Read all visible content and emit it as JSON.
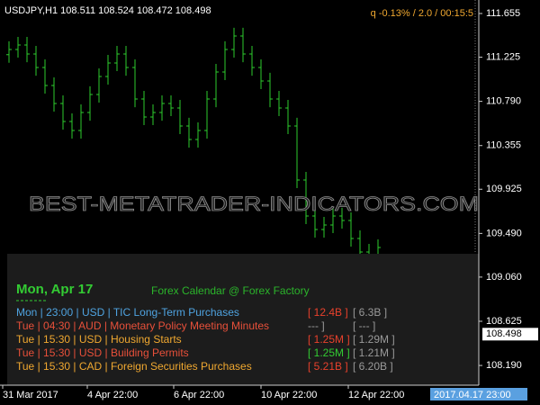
{
  "chart_data": {
    "type": "ohlc",
    "header": "USDJPY,H1  108.511 108.524 108.472 108.498",
    "info": "q -0.13% / 2.0 / 00:15:5",
    "color": "#2ecc2e",
    "open": [
      111.25,
      111.301,
      111.345,
      111.256,
      111.123,
      110.946,
      110.769,
      110.592,
      110.503,
      110.68,
      110.858,
      111.035,
      111.168,
      111.256,
      111.123,
      110.813,
      110.636,
      110.68,
      110.769,
      110.725,
      110.548,
      110.415,
      110.503,
      110.813,
      111.079,
      111.301,
      111.434,
      111.256,
      111.123,
      110.991,
      110.813,
      110.725,
      110.548,
      110.016,
      109.662,
      109.529,
      109.573,
      109.662,
      109.617,
      109.44,
      109.307,
      109.263
    ],
    "high": [
      111.381,
      111.425,
      111.425,
      111.336,
      111.203,
      111.026,
      110.849,
      110.672,
      110.76,
      110.938,
      111.115,
      111.248,
      111.336,
      111.336,
      111.203,
      110.893,
      110.76,
      110.849,
      110.849,
      110.805,
      110.628,
      110.583,
      110.893,
      111.159,
      111.381,
      111.514,
      111.514,
      111.336,
      111.203,
      111.071,
      110.893,
      110.805,
      110.628,
      110.096,
      109.742,
      109.653,
      109.742,
      109.742,
      109.697,
      109.52,
      109.387,
      109.431
    ],
    "low": [
      111.17,
      111.221,
      111.176,
      111.043,
      110.866,
      110.689,
      110.512,
      110.423,
      110.423,
      110.6,
      110.778,
      110.955,
      111.088,
      111.043,
      110.733,
      110.556,
      110.556,
      110.6,
      110.645,
      110.468,
      110.335,
      110.335,
      110.423,
      110.733,
      110.999,
      111.221,
      111.176,
      111.043,
      110.911,
      110.733,
      110.645,
      110.468,
      109.936,
      109.582,
      109.449,
      109.449,
      109.493,
      109.537,
      109.36,
      109.227,
      109.183,
      109.183
    ],
    "close": [
      111.301,
      111.345,
      111.256,
      111.123,
      110.946,
      110.769,
      110.592,
      110.503,
      110.68,
      110.858,
      111.035,
      111.168,
      111.256,
      111.123,
      110.813,
      110.636,
      110.68,
      110.769,
      110.725,
      110.548,
      110.415,
      110.503,
      110.813,
      111.079,
      111.301,
      111.434,
      111.256,
      111.123,
      110.991,
      110.813,
      110.725,
      110.548,
      110.016,
      109.662,
      109.529,
      109.573,
      109.662,
      109.617,
      109.44,
      109.307,
      109.263,
      109.351
    ],
    "ylim": [
      107.978,
      111.788
    ],
    "yticks": [
      111.655,
      111.225,
      {
        "value": 110.79,
        "label": "110.790"
      },
      110.355,
      109.925,
      {
        "value": 109.49,
        "label": "109.490"
      },
      {
        "value": 109.06,
        "label": "109.060"
      },
      108.625,
      {
        "value": 108.19,
        "label": "108.190"
      }
    ],
    "current_price": 108.498,
    "time_labels": [
      "31 Mar 2017",
      "4 Apr 22:00",
      "6 Apr 22:00",
      "10 Apr 22:00",
      "12 Apr 22:00"
    ],
    "current_time": "2017.04.17 23:00"
  },
  "watermark": "BEST-METATRADER-INDICATORS.COM",
  "calendar": {
    "date": "Mon, Apr 17",
    "source": "Forex Calendar @ Forex Factory",
    "rows": [
      {
        "text": "Mon  |  23:00  |  USD  |  TIC Long-Term Purchases",
        "forecast": "[ 12.4B ]",
        "previous": "[ 6.3B ]",
        "color": "#4fa3e0",
        "forecast_color": "#e8412c"
      },
      {
        "text": "Tue  |  04:30  |  AUD  |  Monetary Policy Meeting Minutes",
        "forecast": "--- ]",
        "previous": "[ --- ]",
        "color": "#e8503a",
        "forecast_color": "#9a9a9a"
      },
      {
        "text": "Tue  |  15:30  |  USD  |  Housing Starts",
        "forecast": "[ 1.25M ]",
        "previous": "[ 1.29M ]",
        "color": "#f0a830",
        "forecast_color": "#e8412c"
      },
      {
        "text": "Tue  |  15:30  |  USD  |  Building Permits",
        "forecast": "[ 1.25M ]",
        "previous": "[ 1.21M ]",
        "color": "#e8503a",
        "forecast_color": "#33cc33"
      },
      {
        "text": "Tue  |  15:30  |  CAD  |  Foreign Securities Purchases",
        "forecast": "[ 5.21B ]",
        "previous": "[ 6.20B ]",
        "color": "#f0a830",
        "forecast_color": "#e8412c"
      }
    ]
  }
}
